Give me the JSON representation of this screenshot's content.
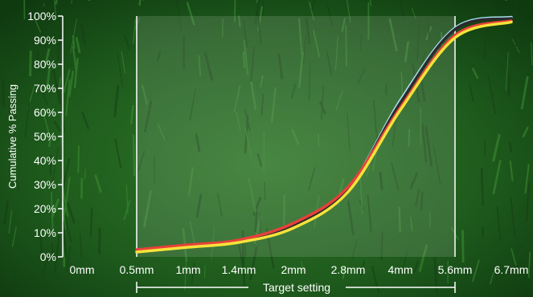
{
  "chart_data": {
    "type": "line",
    "ylabel": "Cumulative % Passing",
    "x_categories": [
      "0mm",
      "0.5mm",
      "1mm",
      "1.4mm",
      "2mm",
      "2.8mm",
      "4mm",
      "5.6mm",
      "6.7mm"
    ],
    "y_ticks": [
      "100%",
      "90%",
      "80%",
      "70%",
      "60%",
      "50%",
      "40%",
      "30%",
      "20%",
      "10%",
      "0%"
    ],
    "ylim": [
      0,
      100
    ],
    "target": {
      "label": "Target setting",
      "from": "0.5mm",
      "to": "5.6mm"
    },
    "series": [
      {
        "color": "#a8dff0",
        "values": [
          null,
          2.5,
          4.5,
          6.5,
          13,
          28,
          65,
          95,
          99.5
        ]
      },
      {
        "color": "#2b2b2b",
        "values": [
          null,
          2.5,
          4.5,
          6.5,
          13,
          28,
          64,
          94.5,
          99
        ]
      },
      {
        "color": "#e8403a",
        "values": [
          null,
          3,
          5,
          7,
          14,
          29,
          62,
          92,
          98
        ]
      },
      {
        "color": "#f5e33a",
        "values": [
          null,
          2,
          4,
          6,
          12,
          27,
          61,
          91,
          97.5
        ]
      }
    ]
  },
  "colors": {
    "background": "#1f5a1c",
    "panel": "#9fb59c",
    "text": "#ffffff"
  }
}
